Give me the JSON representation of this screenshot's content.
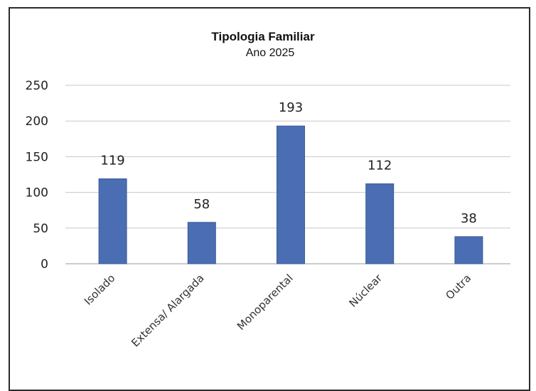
{
  "chart_data": {
    "type": "bar",
    "title": "Tipologia  Familiar",
    "subtitle": "Ano 2025",
    "categories": [
      "Isolado",
      "Extensa/ Alargada",
      "Monoparental",
      "Núclear",
      "Outra"
    ],
    "values": [
      119,
      58,
      193,
      112,
      38
    ],
    "ylim": [
      0,
      250
    ],
    "yticks": [
      0,
      50,
      100,
      150,
      200,
      250
    ],
    "grid": true,
    "legend": "none",
    "bar_color": "#4a6db3"
  }
}
